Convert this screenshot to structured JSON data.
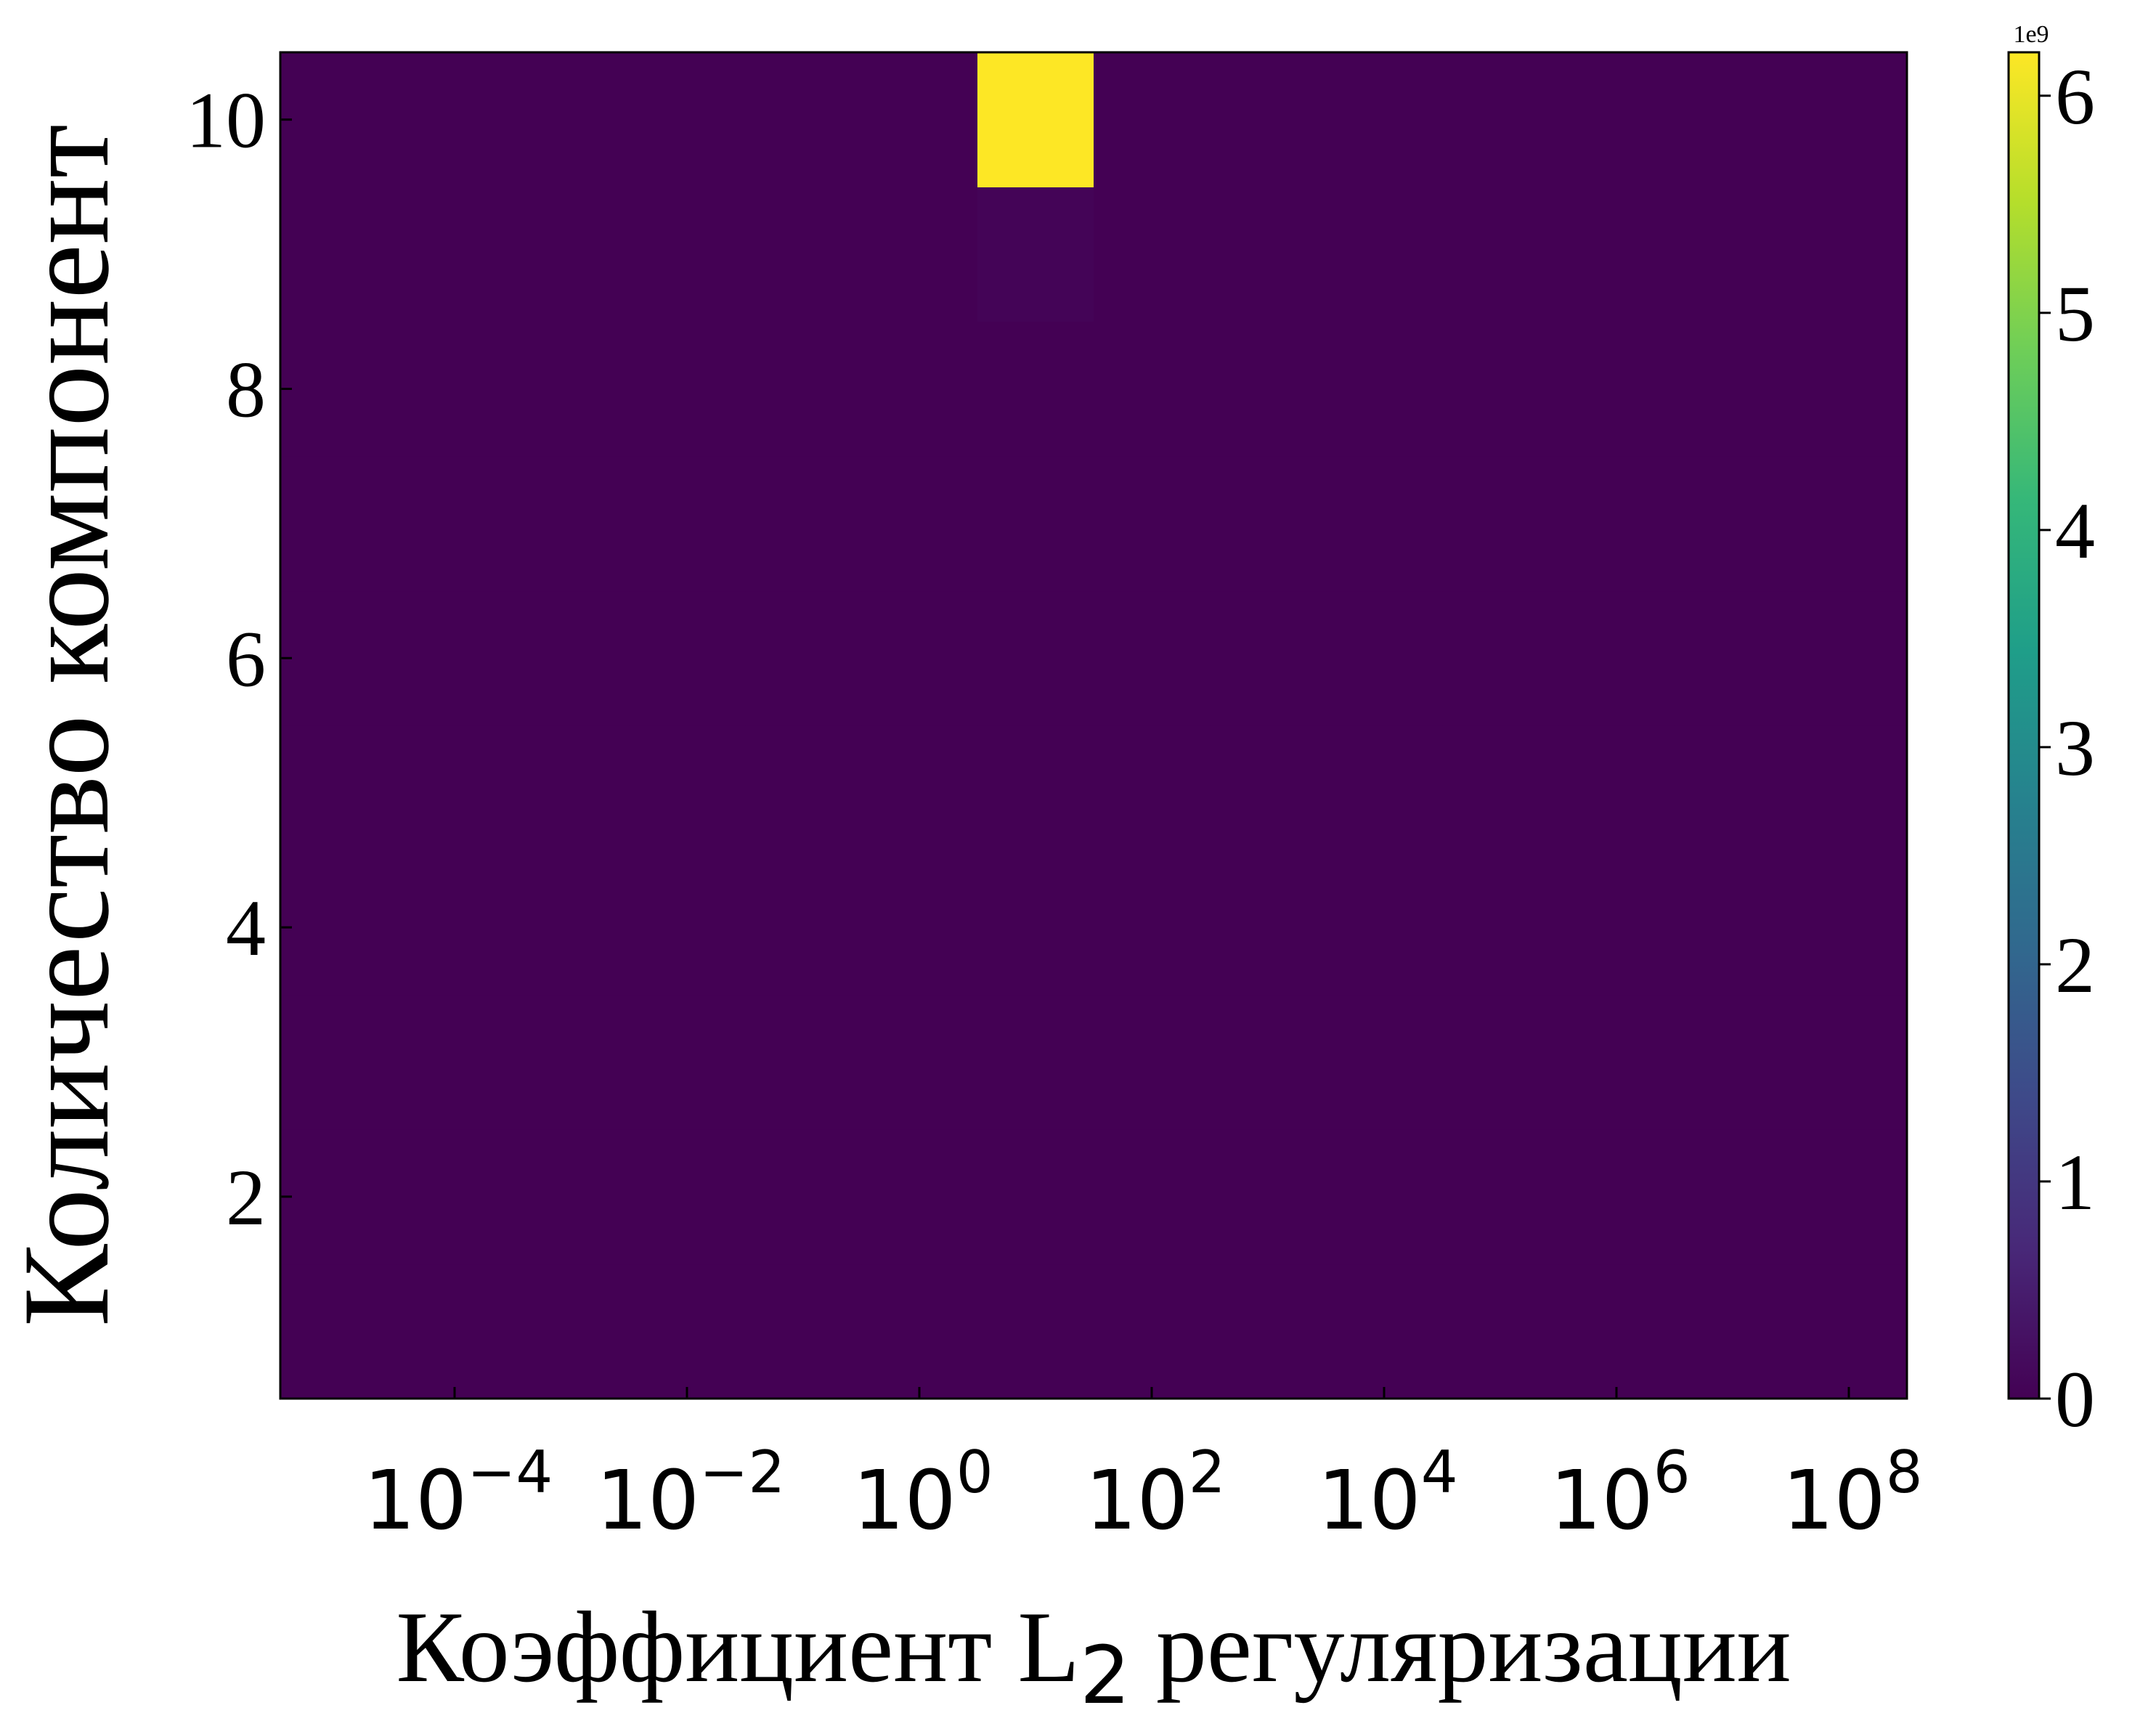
{
  "chart_data": {
    "type": "heatmap",
    "xlabel_parts": [
      "Коэффициент L",
      "2",
      " регуляризации"
    ],
    "ylabel": "Количество компонент",
    "x_scale": "log",
    "x_ticks": [
      {
        "base": "10",
        "exp": "−4",
        "value": 0.0001
      },
      {
        "base": "10",
        "exp": "−2",
        "value": 0.01
      },
      {
        "base": "10",
        "exp": "0",
        "value": 1
      },
      {
        "base": "10",
        "exp": "2",
        "value": 100
      },
      {
        "base": "10",
        "exp": "4",
        "value": 10000
      },
      {
        "base": "10",
        "exp": "6",
        "value": 1000000
      },
      {
        "base": "10",
        "exp": "8",
        "value": 100000000
      }
    ],
    "y_ticks": [
      "2",
      "4",
      "6",
      "8",
      "10"
    ],
    "x_range_log10": [
      -5.5,
      8.5
    ],
    "y_range": [
      0.5,
      10.5
    ],
    "x_cells_log10": [
      -5,
      -4,
      -3,
      -2,
      -1,
      0,
      1,
      2,
      3,
      4,
      5,
      6,
      7,
      8
    ],
    "y_cells": [
      1,
      2,
      3,
      4,
      5,
      6,
      7,
      8,
      9,
      10
    ],
    "hot_cells": [
      {
        "x_log10": 1,
        "y": 10,
        "value": 6200000000
      },
      {
        "x_log10": 1,
        "y": 9,
        "value": 50000000
      }
    ],
    "background_value": 0,
    "colorbar": {
      "min": 0,
      "max": 6200000000,
      "ticks": [
        "0",
        "1",
        "2",
        "3",
        "4",
        "5",
        "6"
      ],
      "multiplier": "1e9",
      "colormap": "viridis"
    },
    "colors": {
      "viridis_stops": [
        "#440154",
        "#482878",
        "#3e4989",
        "#31688e",
        "#26828e",
        "#1f9e89",
        "#35b779",
        "#6ece58",
        "#b5de2b",
        "#fde725"
      ]
    }
  }
}
